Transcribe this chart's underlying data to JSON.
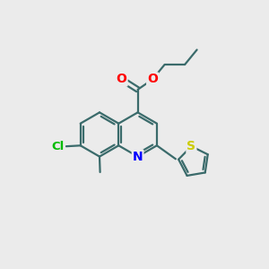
{
  "background_color": "#ebebeb",
  "bond_color": "#3a6b6b",
  "atom_colors": {
    "O": "#ff0000",
    "N": "#0000ff",
    "Cl": "#00bb00",
    "S": "#cccc00",
    "C": "#3a6b6b"
  },
  "figsize": [
    3.0,
    3.0
  ],
  "dpi": 100,
  "xlim": [
    0,
    10
  ],
  "ylim": [
    0,
    10
  ],
  "ring_r": 0.82
}
